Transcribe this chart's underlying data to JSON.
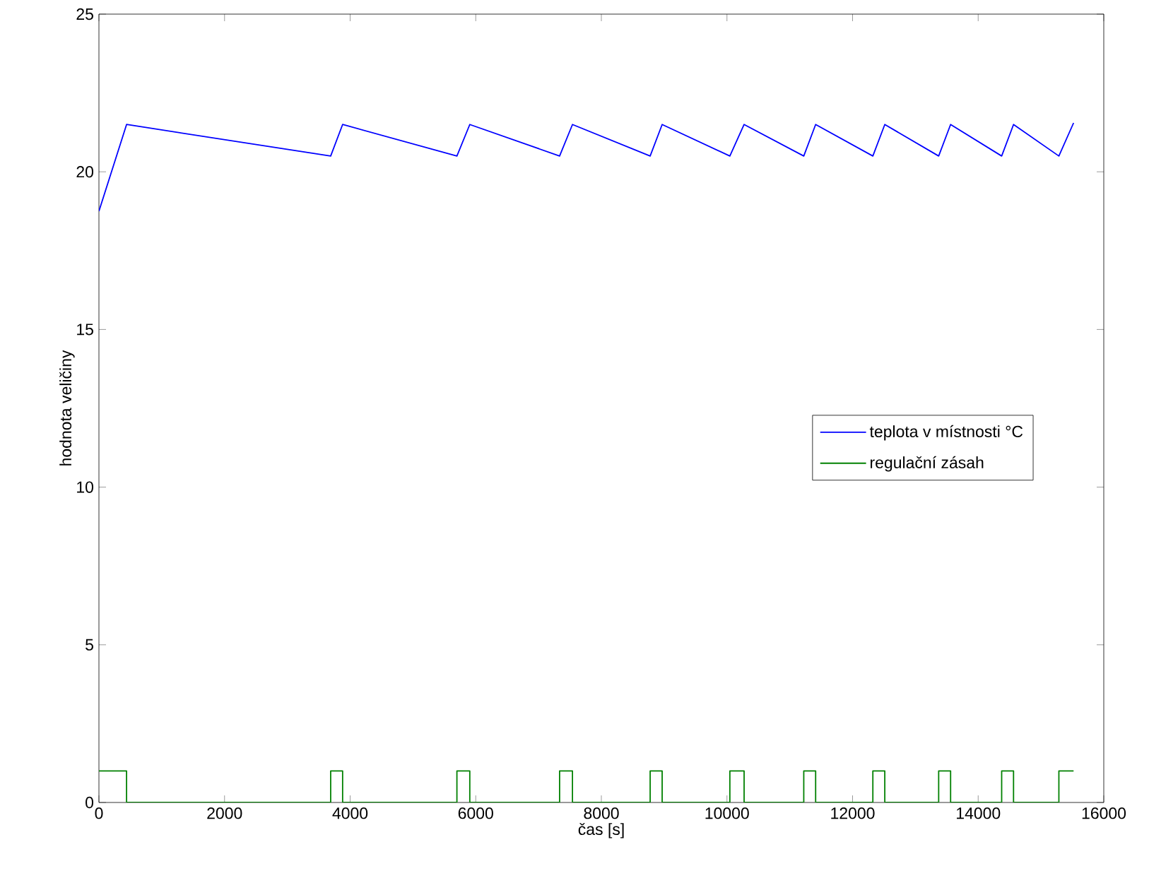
{
  "chart_data": {
    "type": "line",
    "xlabel": "čas [s]",
    "ylabel": "hodnota veličiny",
    "xlim": [
      0,
      16000
    ],
    "xticks": [
      0,
      2000,
      4000,
      6000,
      8000,
      10000,
      12000,
      14000,
      16000
    ],
    "ylim": [
      0,
      25
    ],
    "yticks": [
      0,
      5,
      10,
      15,
      20,
      25
    ],
    "grid": false,
    "legend": "right",
    "marker": "none",
    "line_style": "solid",
    "series": [
      {
        "name": "teplota v místnosti °C",
        "color": "#0000ff",
        "x": [
          0,
          440,
          3690,
          3880,
          5700,
          5905,
          7335,
          7540,
          8777,
          8968,
          10046,
          10273,
          11223,
          11412,
          12323,
          12513,
          13371,
          13561,
          14374,
          14563,
          15285,
          15519
        ],
        "values": [
          18.75,
          21.5,
          20.5,
          21.5,
          20.5,
          21.5,
          20.5,
          21.5,
          20.5,
          21.5,
          20.5,
          21.5,
          20.5,
          21.5,
          20.5,
          21.5,
          20.5,
          21.5,
          20.5,
          21.5,
          20.5,
          21.55
        ]
      },
      {
        "name": "regulační zásah",
        "color": "#008000",
        "type": "step",
        "x": [
          0,
          440,
          3690,
          3880,
          5700,
          5905,
          7335,
          7540,
          8777,
          8968,
          10046,
          10273,
          11223,
          11412,
          12323,
          12513,
          13371,
          13561,
          14374,
          14563,
          15285,
          15519
        ],
        "values": [
          1,
          0,
          1,
          0,
          1,
          0,
          1,
          0,
          1,
          0,
          1,
          0,
          1,
          0,
          1,
          0,
          1,
          0,
          1,
          0,
          1,
          1
        ]
      }
    ]
  }
}
